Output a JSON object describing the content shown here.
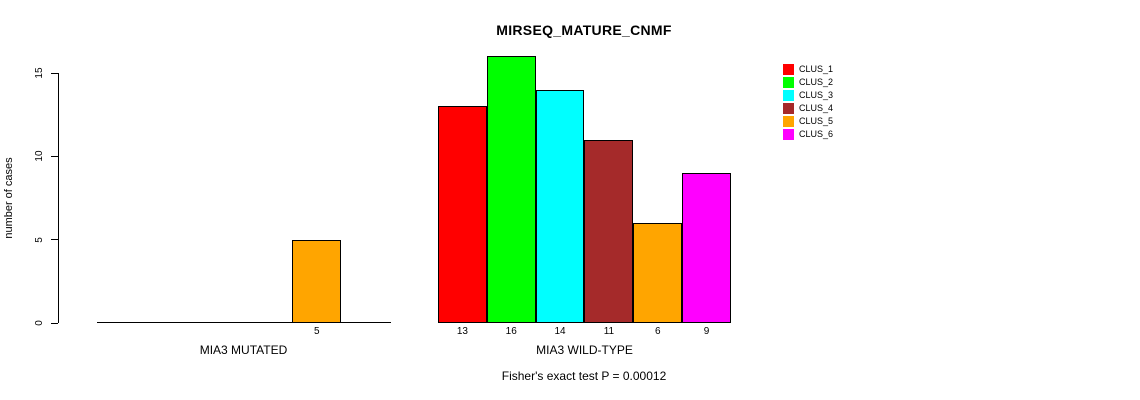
{
  "chart_data": {
    "type": "bar",
    "title": "MIRSEQ_MATURE_CNMF",
    "ylabel": "number of cases",
    "xlabel": "",
    "yticks": [
      0,
      5,
      10,
      15
    ],
    "ylim": [
      0,
      16.8
    ],
    "grid": false,
    "legend_position": "top-right",
    "series": [
      {
        "name": "CLUS_1",
        "color": "#FF0000"
      },
      {
        "name": "CLUS_2",
        "color": "#00FF00"
      },
      {
        "name": "CLUS_3",
        "color": "#00FFFF"
      },
      {
        "name": "CLUS_4",
        "color": "#A52A2A"
      },
      {
        "name": "CLUS_5",
        "color": "#FFA500"
      },
      {
        "name": "CLUS_6",
        "color": "#FF00FF"
      }
    ],
    "groups": [
      {
        "label": "MIA3 MUTATED",
        "values": [
          0,
          0,
          0,
          0,
          5,
          0
        ]
      },
      {
        "label": "MIA3 WILD-TYPE",
        "values": [
          13,
          16,
          14,
          11,
          6,
          9
        ]
      }
    ],
    "footnote": "Fisher's exact test P = 0.00012"
  }
}
